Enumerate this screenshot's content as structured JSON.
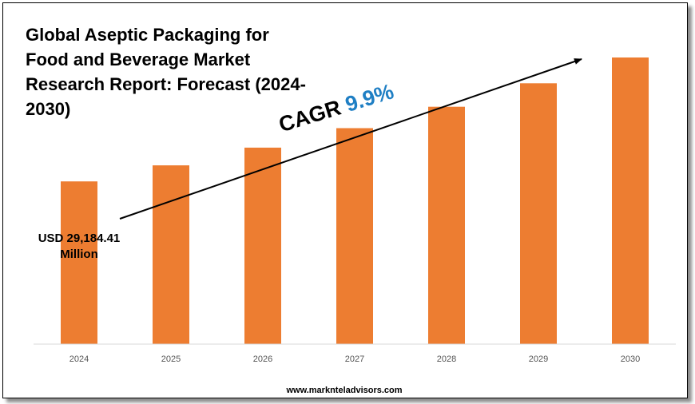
{
  "chart_data": {
    "type": "bar",
    "title": "Global Aseptic Packaging for Food and Beverage Market Research Report: Forecast (2024-2030)",
    "categories": [
      "2024",
      "2025",
      "2026",
      "2027",
      "2028",
      "2029",
      "2030"
    ],
    "values": [
      29184.41,
      32073.66,
      35248.95,
      38738.6,
      42573.72,
      46788.52,
      51420.58
    ],
    "xlabel": "",
    "ylabel": "",
    "ylim": [
      0,
      56000
    ],
    "grid": false,
    "legend": "none",
    "bar_color": "#ed7d31",
    "start_label": "USD 29,184.41 Million",
    "cagr_label": "CAGR",
    "cagr_value": "9.9%",
    "cagr_color": "#1f7fc4"
  },
  "footer": {
    "url": "www.marknteladvisors.com"
  }
}
